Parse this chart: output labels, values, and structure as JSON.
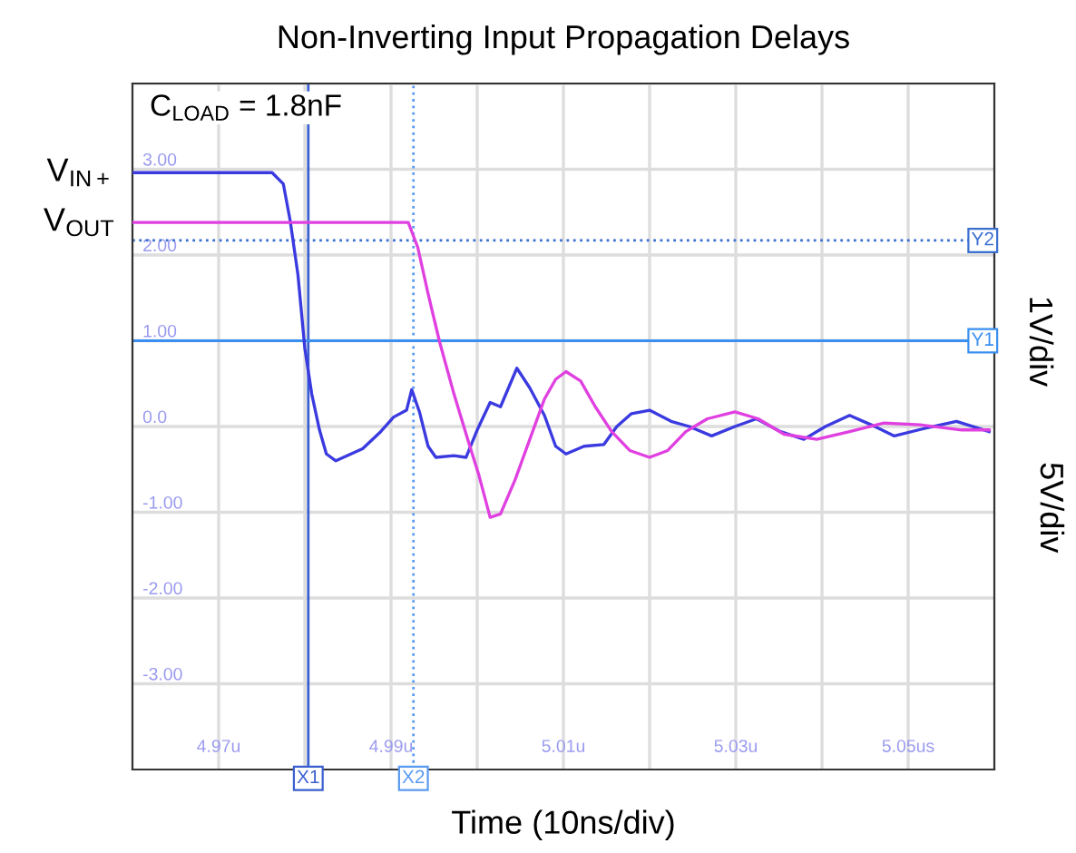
{
  "chart_data": {
    "type": "line",
    "title": "Non-Inverting Input Propagation Delays",
    "xlabel": "Time (10ns/div)",
    "annotations": [
      "C$_{LOAD}$ = 1.8nF",
      "1V/div",
      "5V/div"
    ],
    "series": [
      {
        "name": "V$_{IN+}$",
        "color": "#3a3ae0",
        "x": [
          4.96,
          4.9762,
          4.9775,
          4.9783,
          4.9792,
          4.98,
          4.9808,
          4.9817,
          4.9825,
          4.9836,
          4.9867,
          4.9888,
          4.9903,
          4.9918,
          4.9924,
          4.9933,
          4.9943,
          4.9952,
          4.9973,
          4.9987,
          5.0,
          5.0015,
          5.0027,
          5.0046,
          5.0061,
          5.0078,
          5.0091,
          5.0103,
          5.0124,
          5.0147,
          5.0162,
          5.0179,
          5.02,
          5.0225,
          5.0246,
          5.0272,
          5.0299,
          5.0324,
          5.0352,
          5.0379,
          5.0404,
          5.0432,
          5.0457,
          5.0484,
          5.052,
          5.0556,
          5.0594
        ],
        "values": [
          2.96,
          2.96,
          2.83,
          2.4,
          1.77,
          0.91,
          0.38,
          -0.04,
          -0.32,
          -0.4,
          -0.26,
          -0.06,
          0.11,
          0.19,
          0.43,
          0.17,
          -0.23,
          -0.36,
          -0.34,
          -0.36,
          -0.04,
          0.28,
          0.23,
          0.68,
          0.45,
          0.13,
          -0.23,
          -0.32,
          -0.23,
          -0.21,
          0.0,
          0.15,
          0.19,
          0.06,
          0.0,
          -0.11,
          0.0,
          0.09,
          -0.06,
          -0.15,
          0.0,
          0.13,
          0.02,
          -0.11,
          -0.02,
          0.06,
          -0.06
        ]
      },
      {
        "name": "V$_{OUT}$",
        "color": "#e040e0",
        "x": [
          4.96,
          4.992,
          4.9931,
          4.9943,
          4.9956,
          4.9973,
          4.9989,
          5.0002,
          5.0015,
          5.0027,
          5.0044,
          5.0061,
          5.0078,
          5.0091,
          5.0103,
          5.012,
          5.0137,
          5.0156,
          5.0177,
          5.02,
          5.0221,
          5.0242,
          5.0267,
          5.0299,
          5.0326,
          5.0356,
          5.0394,
          5.0432,
          5.0472,
          5.0514,
          5.0562,
          5.0594
        ],
        "values": [
          2.38,
          2.38,
          2.09,
          1.55,
          1.0,
          0.38,
          -0.15,
          -0.57,
          -1.06,
          -1.02,
          -0.62,
          -0.15,
          0.32,
          0.55,
          0.64,
          0.53,
          0.23,
          -0.06,
          -0.28,
          -0.36,
          -0.28,
          -0.06,
          0.09,
          0.17,
          0.09,
          -0.09,
          -0.15,
          -0.06,
          0.04,
          0.02,
          -0.04,
          -0.04
        ]
      }
    ],
    "xlim": [
      4.96,
      5.06
    ],
    "xticks": [
      {
        "value": 4.97,
        "label": "4.97u"
      },
      {
        "value": 4.98,
        "label": null
      },
      {
        "value": 4.99,
        "label": "4.99u"
      },
      {
        "value": 5.0,
        "label": null
      },
      {
        "value": 5.01,
        "label": "5.01u"
      },
      {
        "value": 5.02,
        "label": null
      },
      {
        "value": 5.03,
        "label": "5.03u"
      },
      {
        "value": 5.04,
        "label": null
      },
      {
        "value": 5.05,
        "label": "5.05us"
      }
    ],
    "ylim": [
      -4,
      4
    ],
    "yticks": [
      {
        "value": 4,
        "label": null
      },
      {
        "value": 3,
        "label": "3.00"
      },
      {
        "value": 2,
        "label": "2.00"
      },
      {
        "value": 1,
        "label": "1.00"
      },
      {
        "value": 0,
        "label": "0.0"
      },
      {
        "value": -1,
        "label": "-1.00"
      },
      {
        "value": -2,
        "label": "-2.00"
      },
      {
        "value": -3,
        "label": "-3.00"
      }
    ],
    "ref_lines": [
      {
        "axis": "x",
        "value": 4.9804,
        "label": "X1",
        "color": "#3a5fd0",
        "line_style": "solid"
      },
      {
        "axis": "x",
        "value": 4.9926,
        "label": "X2",
        "color": "#5a9af0",
        "line_style": "dotted"
      },
      {
        "axis": "y",
        "value": 1.0,
        "label": "Y1",
        "color": "#3a8ff0",
        "line_style": "solid"
      },
      {
        "axis": "y",
        "value": 2.17,
        "label": "Y2",
        "color": "#3a6fd0",
        "line_style": "dotted"
      }
    ],
    "grid": true,
    "legend": false,
    "marker": "none",
    "line_style": "solid"
  }
}
